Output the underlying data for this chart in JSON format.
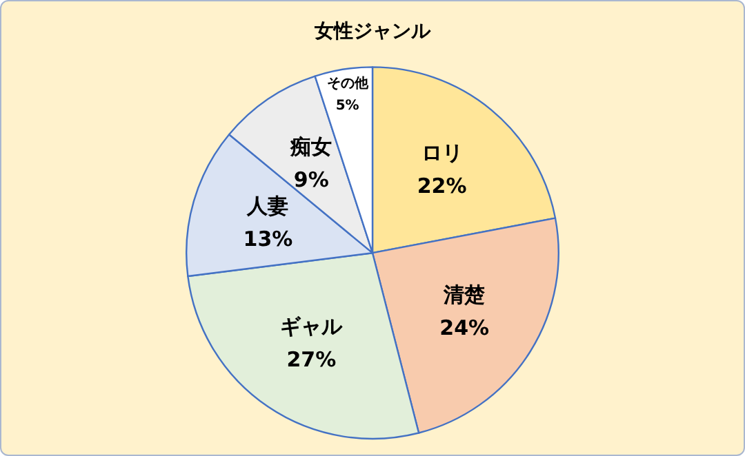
{
  "chart_data": {
    "type": "pie",
    "title": "女性ジャンル",
    "categories": [
      "ロリ",
      "清楚",
      "ギャル",
      "人妻",
      "痴女",
      "その他"
    ],
    "values": [
      22,
      24,
      27,
      13,
      9,
      5
    ],
    "value_labels": [
      "22%",
      "24%",
      "27%",
      "13%",
      "9%",
      "5%"
    ],
    "colors": [
      "#ffe699",
      "#f8cbad",
      "#e2efda",
      "#dae3f3",
      "#ededed",
      "#ffffff"
    ],
    "legend": false
  }
}
